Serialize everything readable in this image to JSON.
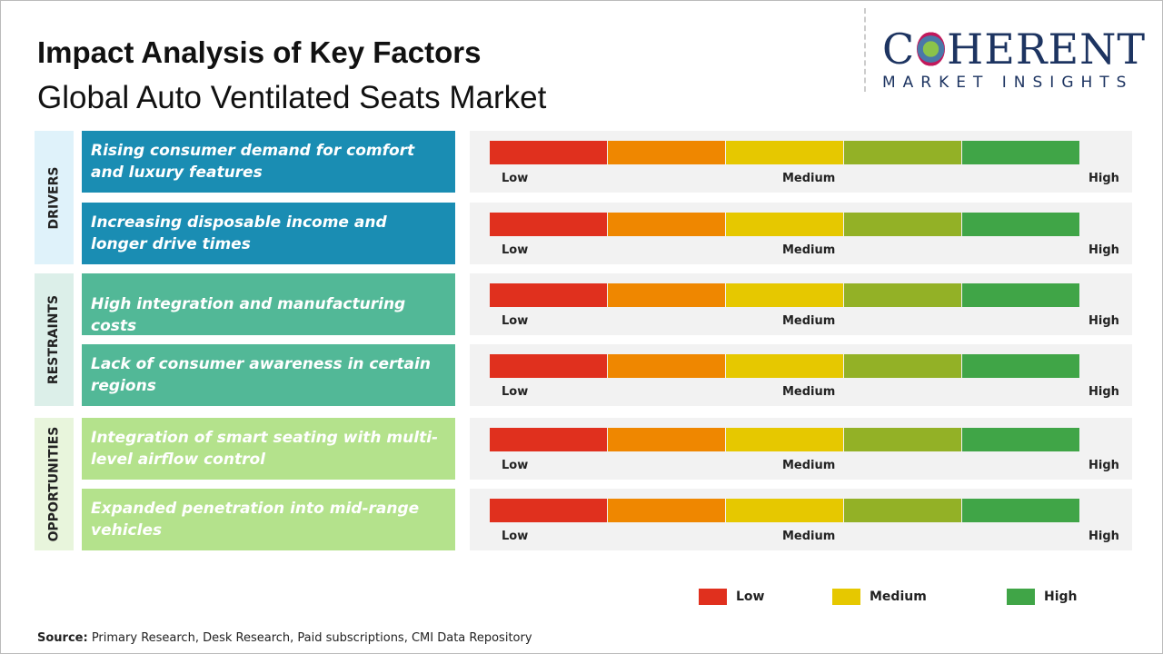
{
  "title": "Impact Analysis of Key Factors",
  "subtitle": "Global Auto Ventilated Seats Market",
  "logo": {
    "main": "COHERENT",
    "sub": "MARKET INSIGHTS"
  },
  "scale": {
    "low": "Low",
    "medium": "Medium",
    "high": "High",
    "colors": [
      "#e0301e",
      "#ef8700",
      "#e6c800",
      "#93b126",
      "#40a547"
    ]
  },
  "categories": [
    {
      "label": "DRIVERS",
      "color": "#1a8db3",
      "bg": "#dff2fa",
      "factors": [
        "Rising consumer demand for comfort and luxury features",
        "Increasing disposable income and longer drive times"
      ]
    },
    {
      "label": "RESTRAINTS",
      "color": "#52b897",
      "bg": "#dcefe9",
      "factors": [
        "High integration and manufacturing costs",
        "Lack of consumer awareness in certain regions"
      ]
    },
    {
      "label": "OPPORTUNITIES",
      "color": "#b4e28c",
      "bg": "#e8f5dc",
      "factors": [
        "Integration of smart seating with multi-level airflow control",
        "Expanded penetration into mid-range vehicles"
      ]
    }
  ],
  "legend": [
    {
      "label": "Low",
      "color": "#e0301e"
    },
    {
      "label": "Medium",
      "color": "#e6c800"
    },
    {
      "label": "High",
      "color": "#40a547"
    }
  ],
  "source": {
    "label": "Source:",
    "text": " Primary Research, Desk Research, Paid subscriptions, CMI Data Repository"
  }
}
